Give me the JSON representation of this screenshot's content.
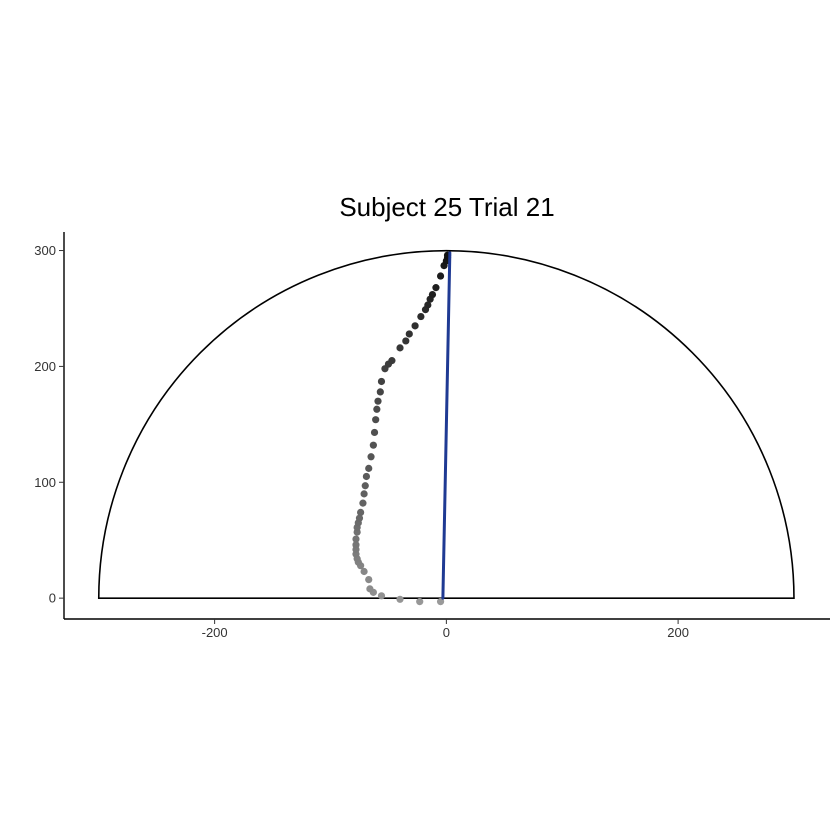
{
  "chart_data": {
    "type": "scatter",
    "title": "Subject  25  Trial  21",
    "xlabel": "",
    "ylabel": "",
    "xlim": [
      -330,
      330
    ],
    "ylim": [
      -18,
      316
    ],
    "x_ticks": [
      -200,
      0,
      200
    ],
    "x_tick_labels": [
      "-200",
      "0",
      "200"
    ],
    "y_ticks": [
      0,
      100,
      200,
      300
    ],
    "y_tick_labels": [
      "0",
      "100",
      "200",
      "300"
    ],
    "grid": false,
    "legend": "none",
    "boundary": {
      "shape": "semicircle",
      "center": [
        0,
        0
      ],
      "radius": 300
    },
    "target_line": {
      "from": [
        -3,
        0
      ],
      "to": [
        3,
        298
      ],
      "color": "#1f3a93"
    },
    "trajectory": {
      "color_start": "#9a9a9a",
      "color_end": "#111111",
      "points": [
        [
          -5,
          -3
        ],
        [
          -23,
          -3
        ],
        [
          -40,
          -1
        ],
        [
          -56,
          2
        ],
        [
          -63,
          5
        ],
        [
          -66,
          8
        ],
        [
          -67,
          16
        ],
        [
          -71,
          23
        ],
        [
          -74,
          28
        ],
        [
          -76,
          31
        ],
        [
          -77,
          34
        ],
        [
          -78,
          38
        ],
        [
          -78,
          42
        ],
        [
          -78,
          46
        ],
        [
          -78,
          51
        ],
        [
          -77,
          57
        ],
        [
          -77,
          61
        ],
        [
          -76,
          65
        ],
        [
          -75,
          69
        ],
        [
          -74,
          74
        ],
        [
          -72,
          82
        ],
        [
          -71,
          90
        ],
        [
          -70,
          97
        ],
        [
          -69,
          105
        ],
        [
          -67,
          112
        ],
        [
          -65,
          122
        ],
        [
          -63,
          132
        ],
        [
          -62,
          143
        ],
        [
          -61,
          154
        ],
        [
          -60,
          163
        ],
        [
          -59,
          170
        ],
        [
          -57,
          178
        ],
        [
          -56,
          187
        ],
        [
          -53,
          198
        ],
        [
          -50,
          202
        ],
        [
          -47,
          205
        ],
        [
          -40,
          216
        ],
        [
          -35,
          222
        ],
        [
          -32,
          228
        ],
        [
          -27,
          235
        ],
        [
          -22,
          243
        ],
        [
          -18,
          249
        ],
        [
          -16,
          253
        ],
        [
          -14,
          258
        ],
        [
          -12,
          262
        ],
        [
          -9,
          268
        ],
        [
          -5,
          278
        ],
        [
          -2,
          287
        ],
        [
          0,
          291
        ],
        [
          1,
          294
        ],
        [
          1,
          296
        ]
      ]
    }
  }
}
